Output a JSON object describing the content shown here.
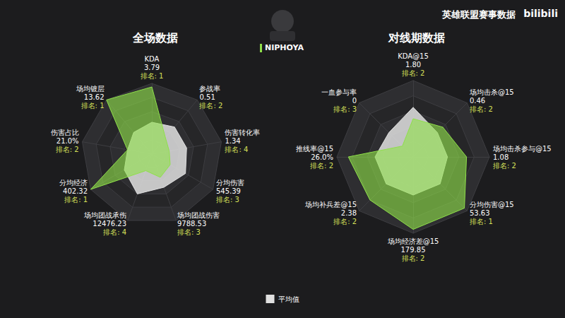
{
  "header": {
    "source": "英雄联盟赛事数据",
    "logo": "bilibili"
  },
  "player": "NIPHOYA",
  "chart_data": [
    {
      "type": "radar",
      "title": "全场数据",
      "ylim": [
        0,
        1
      ],
      "legend": "bottom",
      "indicators": [
        {
          "name": "KDA",
          "stat": "3.79",
          "rank": "排名: 1"
        },
        {
          "name": "参战率",
          "stat": "0.51",
          "rank": "排名: 2"
        },
        {
          "name": "伤害转化率",
          "stat": "1.34",
          "rank": "排名: 4"
        },
        {
          "name": "分均伤害",
          "stat": "545.39",
          "rank": "排名: 3"
        },
        {
          "name": "场均团战伤害",
          "stat": "9788.53",
          "rank": "排名: 3"
        },
        {
          "name": "场均团战承伤",
          "stat": "12476.23",
          "rank": "排名: 4"
        },
        {
          "name": "分均经济",
          "stat": "402.32",
          "rank": "排名: 1"
        },
        {
          "name": "伤害占比",
          "stat": "21.0%",
          "rank": "排名: 2"
        },
        {
          "name": "场均镀层",
          "stat": "13.62",
          "rank": "排名: 1"
        }
      ],
      "series": [
        {
          "name": "平均值",
          "color": "#e0e0e0",
          "values": [
            0.45,
            0.5,
            0.5,
            0.55,
            0.5,
            0.6,
            0.45,
            0.35,
            0.4
          ]
        },
        {
          "name": "NIPHOYA",
          "color": "#8fe04a",
          "values": [
            0.95,
            0.3,
            0.25,
            0.3,
            0.35,
            0.25,
            1.0,
            0.35,
            1.0
          ]
        }
      ]
    },
    {
      "type": "radar",
      "title": "对线期数据",
      "ylim": [
        0,
        1
      ],
      "indicators": [
        {
          "name": "KDA@15",
          "stat": "1.80",
          "rank": "排名: 2"
        },
        {
          "name": "场均击杀@15",
          "stat": "0.46",
          "rank": "排名: 2"
        },
        {
          "name": "场均击杀参与@15",
          "stat": "1.08",
          "rank": "排名: 2"
        },
        {
          "name": "分均伤害@15",
          "stat": "53.63",
          "rank": "排名: 1"
        },
        {
          "name": "场均经济差@15",
          "stat": "179.85",
          "rank": "排名: 2"
        },
        {
          "name": "场均补兵差@15",
          "stat": "2.38",
          "rank": "排名: 2"
        },
        {
          "name": "推线率@15",
          "stat": "26.0%",
          "rank": "排名: 2"
        },
        {
          "name": "一血参与率",
          "stat": "0",
          "rank": "排名: 3"
        }
      ],
      "series": [
        {
          "name": "平均值",
          "color": "#e0e0e0",
          "values": [
            0.65,
            0.45,
            0.45,
            0.5,
            0.5,
            0.5,
            0.5,
            0.45
          ]
        },
        {
          "name": "NIPHOYA",
          "color": "#8fe04a",
          "values": [
            0.5,
            0.55,
            0.7,
            0.95,
            0.95,
            0.8,
            0.85,
            0.2
          ]
        }
      ]
    }
  ]
}
